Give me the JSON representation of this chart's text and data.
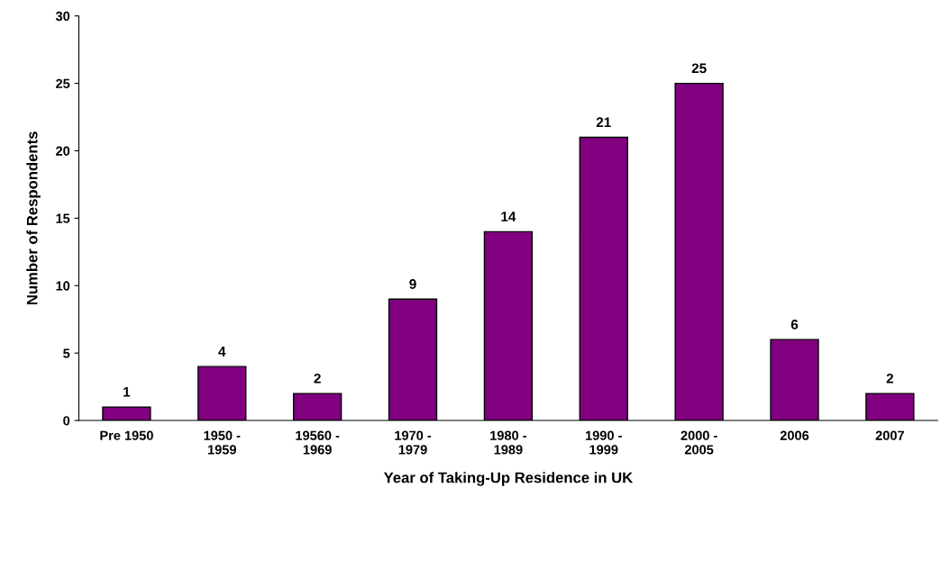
{
  "chart_data": {
    "type": "bar",
    "xlabel": "Year of Taking-Up Residence in UK",
    "ylabel": "Number of Respondents",
    "categories": [
      "Pre 1950",
      "1950 -\n1959",
      "19560 -\n1969",
      "1970 -\n1979",
      "1980 -\n1989",
      "1990 -\n1999",
      "2000 -\n2005",
      "2006",
      "2007"
    ],
    "values": [
      1,
      4,
      2,
      9,
      14,
      21,
      25,
      6,
      2
    ],
    "color": "#800080",
    "ylim": [
      0,
      30
    ],
    "yticks": [
      0,
      5,
      10,
      15,
      20,
      25,
      30
    ],
    "grid": false,
    "data_labels": true
  }
}
